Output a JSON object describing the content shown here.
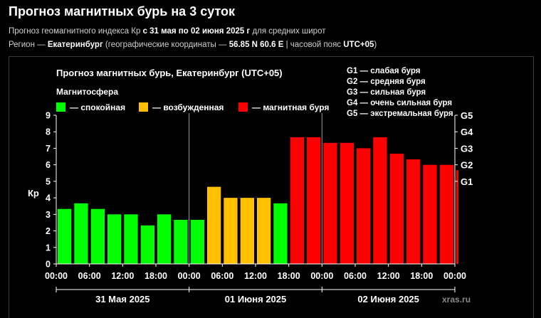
{
  "page": {
    "title": "Прогноз магнитных бурь на 3 суток",
    "subtitle1": {
      "prefix": "Прогноз геомагнитного индекса Кр ",
      "dates": "с 31 мая по 02 июня 2025 г",
      "suffix": " для средних широт"
    },
    "subtitle2": {
      "prefix": "Регион — ",
      "city": "Екатеринбург",
      "coords_prefix": " (географические координаты — ",
      "coords": "56.85 N 60.6 E",
      "tz_prefix": " | часовой пояс ",
      "tz": "UTC+05",
      "suffix": ")"
    }
  },
  "chart_data": {
    "type": "bar",
    "title": "Прогноз магнитных бурь, Екатеринбург (UTC+05)",
    "ylabel": "Кр",
    "ylim": [
      0,
      9
    ],
    "yticks": [
      0,
      1,
      2,
      3,
      4,
      5,
      6,
      7,
      8,
      9
    ],
    "right_axis": [
      {
        "label": "G1",
        "value": 5
      },
      {
        "label": "G2",
        "value": 6
      },
      {
        "label": "G3",
        "value": 7
      },
      {
        "label": "G4",
        "value": 8
      },
      {
        "label": "G5",
        "value": 9
      }
    ],
    "xtick_labels": [
      "00:00",
      "06:00",
      "12:00",
      "18:00",
      "00:00",
      "06:00",
      "12:00",
      "18:00",
      "00:00",
      "06:00",
      "12:00",
      "18:00",
      "00:00"
    ],
    "day_labels": [
      "31 Мая 2025",
      "01 Июня 2025",
      "02 Июня 2025"
    ],
    "values": [
      3.33,
      3.67,
      3.33,
      3.0,
      3.0,
      2.33,
      3.0,
      2.67,
      2.67,
      4.67,
      4.0,
      4.0,
      4.0,
      3.67,
      7.67,
      7.67,
      7.33,
      7.33,
      7.0,
      7.67,
      6.67,
      6.33,
      6.0,
      6.0,
      5.67
    ],
    "legend_title": "Магнитосфера",
    "legend": [
      {
        "label": "— спокойная",
        "color": "#00ff00"
      },
      {
        "label": "— возбужденная",
        "color": "#ffc000"
      },
      {
        "label": "— магнитная буря",
        "color": "#ff0000"
      }
    ],
    "g_scale": [
      "G1 — слабая буря",
      "G2 — средняя буря",
      "G3 — сильная буря",
      "G4 — очень сильная буря",
      "G5 — экстремальная буря"
    ],
    "grid": false,
    "watermark": "xras.ru"
  }
}
